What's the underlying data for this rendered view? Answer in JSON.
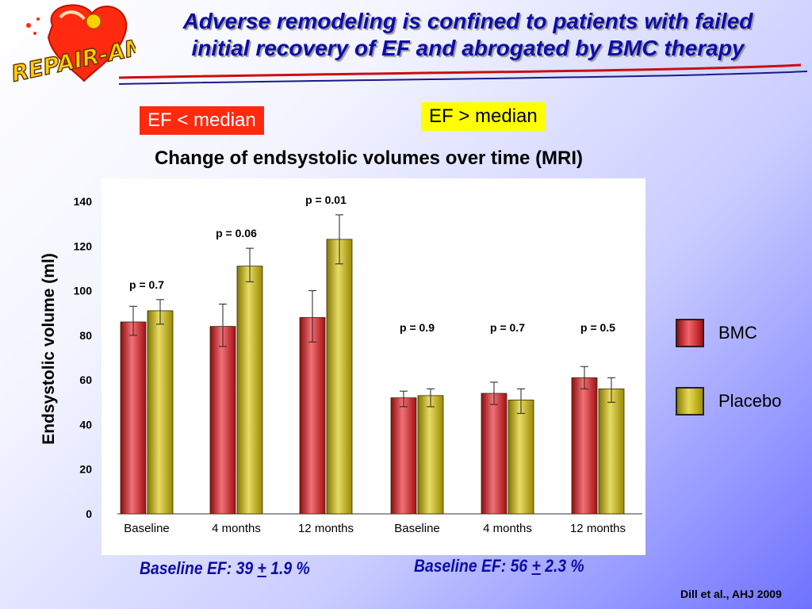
{
  "logo": {
    "text": "REPAIR-AMI"
  },
  "slide": {
    "title_line1": "Adverse remodeling is confined to patients with failed",
    "title_line2": "initial recovery of EF and abrogated by BMC therapy"
  },
  "groups": {
    "low_label": "EF < median",
    "high_label": "EF > median",
    "low_baseline_prefix": "Baseline EF:  39 ",
    "low_baseline_pm": "+",
    "low_baseline_suffix": " 1.9 %",
    "high_baseline_prefix": "Baseline EF:  56 ",
    "high_baseline_pm": "+",
    "high_baseline_suffix": " 2.3 %"
  },
  "legend": {
    "items": [
      {
        "label": "BMC",
        "color": "#e8141a"
      },
      {
        "label": "Placebo",
        "color": "#d9c400"
      }
    ]
  },
  "citation": "Dill et al., AHJ 2009",
  "chart_data": {
    "type": "bar",
    "title": "Change of endsystolic volumes over time (MRI)",
    "ylabel": "Endsystolic volume (ml)",
    "xlabel": "",
    "ylim": [
      0,
      140
    ],
    "yticks": [
      0,
      20,
      40,
      60,
      80,
      100,
      120,
      140
    ],
    "grid": false,
    "legend_position": "right",
    "categories": [
      "Baseline",
      "4 months",
      "12 months",
      "Baseline",
      "4 months",
      "12 months"
    ],
    "series": [
      {
        "name": "BMC",
        "color": "#e8141a",
        "values": [
          86,
          84,
          88,
          52,
          54,
          61
        ],
        "err_low": [
          80,
          75,
          77,
          48,
          49,
          56
        ],
        "err_high": [
          93,
          94,
          100,
          55,
          59,
          66
        ]
      },
      {
        "name": "Placebo",
        "color": "#d9c400",
        "values": [
          91,
          111,
          123,
          53,
          51,
          56
        ],
        "err_low": [
          85,
          104,
          112,
          48,
          45,
          50
        ],
        "err_high": [
          96,
          119,
          134,
          56,
          56,
          61
        ]
      }
    ],
    "p_values": [
      "p = 0.7",
      "p = 0.06",
      "p = 0.01",
      "p = 0.9",
      "p = 0.7",
      "p = 0.5"
    ],
    "annotations": [
      "p = 0.7",
      "p = 0.06",
      "p = 0.01",
      "p = 0.9",
      "p = 0.7",
      "p = 0.5"
    ]
  }
}
